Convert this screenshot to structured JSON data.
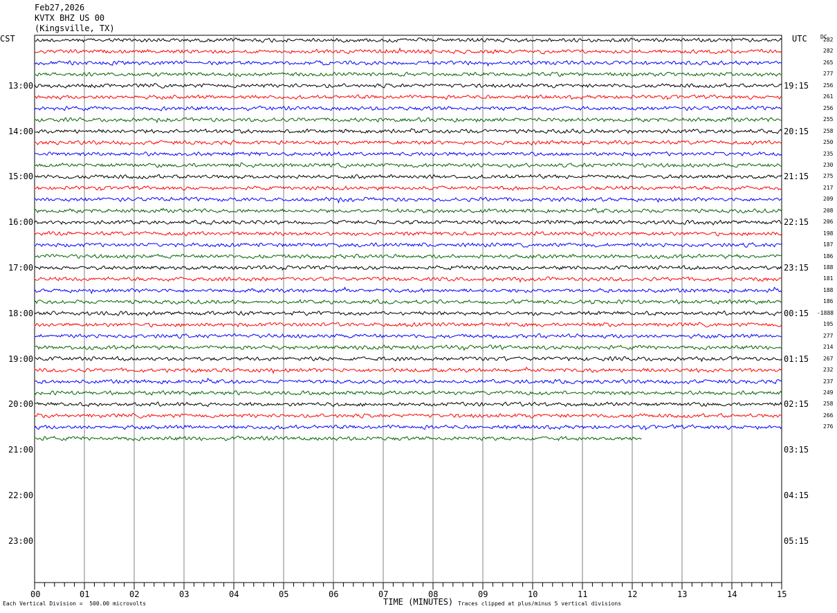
{
  "header": {
    "date": "Feb27,2026",
    "station": "KVTX BHZ US 00",
    "location": "(Kingsville, TX)",
    "left_tz": "CST",
    "right_tz": "UTC",
    "dc_label": "DC"
  },
  "footer": {
    "vertical_division": "Each Vertical Division =  500.00 microvolts",
    "xlabel": "TIME (MINUTES)",
    "clip_note": "Traces clipped at plus/minus 5 vertical divisions"
  },
  "colors": {
    "cycle": [
      "#000000",
      "#ff0000",
      "#0000ff",
      "#006400"
    ],
    "grid": "#808080"
  },
  "chart_data": {
    "type": "line",
    "title": "KVTX BHZ US 00 (Kingsville, TX) Feb27,2026",
    "xlabel": "TIME (MINUTES)",
    "xlim": [
      0,
      15
    ],
    "x_ticks": [
      "00",
      "01",
      "02",
      "03",
      "04",
      "05",
      "06",
      "07",
      "08",
      "09",
      "10",
      "11",
      "12",
      "13",
      "14",
      "15"
    ],
    "rows_per_hour": 4,
    "left_hour_labels": [
      "13:00",
      "14:00",
      "15:00",
      "16:00",
      "17:00",
      "18:00",
      "19:00",
      "20:00",
      "21:00",
      "22:00",
      "23:00"
    ],
    "right_hour_labels": [
      "19:15",
      "20:15",
      "21:15",
      "22:15",
      "23:15",
      "00:15",
      "01:15",
      "02:15",
      "03:15",
      "04:15",
      "05:15"
    ],
    "first_label_row": 4,
    "total_rows": 48,
    "dc_offsets": [
      "282",
      "282",
      "265",
      "277",
      "256",
      "261",
      "256",
      "255",
      "258",
      "250",
      "235",
      "230",
      "275",
      "217",
      "209",
      "208",
      "206",
      "198",
      "187",
      "186",
      "188",
      "181",
      "188",
      "186",
      "-1888",
      "195",
      "277",
      "214",
      "267",
      "232",
      "237",
      "249",
      "258",
      "266",
      "276"
    ],
    "trace_count": 36,
    "last_trace_end_minute": 12.2,
    "grid": true
  }
}
